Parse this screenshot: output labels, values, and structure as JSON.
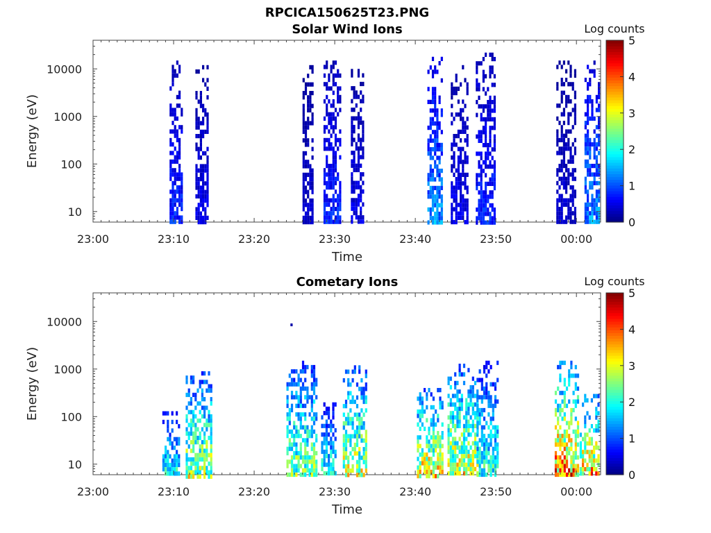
{
  "figure": {
    "title": "RPCICA150625T23.PNG"
  },
  "chart_data": [
    {
      "type": "heatmap",
      "title": "Solar Wind Ions",
      "xlabel": "Time",
      "ylabel": "Energy (eV)",
      "x_ticks": [
        "23:00",
        "23:10",
        "23:20",
        "23:30",
        "23:40",
        "23:50",
        "00:00"
      ],
      "x_range_minutes": [
        0,
        63
      ],
      "y_scale": "log",
      "y_ticks": [
        "10",
        "100",
        "1000",
        "10000"
      ],
      "y_range": [
        6,
        40000
      ],
      "colorbar": {
        "label": "Log counts",
        "range": [
          0,
          5
        ],
        "ticks": [
          "0",
          "1",
          "2",
          "3",
          "4",
          "5"
        ]
      },
      "bursts": [
        {
          "t_start": 9.5,
          "t_end": 11.0,
          "e_min": 6,
          "e_max": 15000,
          "level": 0.6
        },
        {
          "t_start": 12.7,
          "t_end": 14.3,
          "e_min": 300,
          "e_max": 12000,
          "level": 0.4
        },
        {
          "t_start": 26.0,
          "t_end": 27.3,
          "e_min": 300,
          "e_max": 12000,
          "level": 0.3
        },
        {
          "t_start": 28.6,
          "t_end": 30.7,
          "e_min": 6,
          "e_max": 15000,
          "level": 0.6
        },
        {
          "t_start": 32.0,
          "t_end": 33.6,
          "e_min": 300,
          "e_max": 10000,
          "level": 0.4
        },
        {
          "t_start": 41.5,
          "t_end": 43.3,
          "e_min": 6,
          "e_max": 18000,
          "level": 1.0
        },
        {
          "t_start": 44.4,
          "t_end": 46.5,
          "e_min": 300,
          "e_max": 12000,
          "level": 0.4
        },
        {
          "t_start": 47.5,
          "t_end": 49.8,
          "e_min": 6,
          "e_max": 22000,
          "level": 0.6
        },
        {
          "t_start": 57.5,
          "t_end": 59.8,
          "e_min": 300,
          "e_max": 15000,
          "level": 0.3
        },
        {
          "t_start": 61.0,
          "t_end": 62.7,
          "e_min": 6,
          "e_max": 15000,
          "level": 1.0
        }
      ]
    },
    {
      "type": "heatmap",
      "title": "Cometary Ions",
      "xlabel": "Time",
      "ylabel": "Energy (eV)",
      "x_ticks": [
        "23:00",
        "23:10",
        "23:20",
        "23:30",
        "23:40",
        "23:50",
        "00:00"
      ],
      "x_range_minutes": [
        0,
        63
      ],
      "y_scale": "log",
      "y_ticks": [
        "10",
        "100",
        "1000",
        "10000"
      ],
      "y_range": [
        6,
        40000
      ],
      "colorbar": {
        "label": "Log counts",
        "range": [
          0,
          5
        ],
        "ticks": [
          "0",
          "1",
          "2",
          "3",
          "4",
          "5"
        ]
      },
      "bursts": [
        {
          "t_start": 8.6,
          "t_end": 10.8,
          "e_min": 6,
          "e_max": 130,
          "level": 1.5
        },
        {
          "t_start": 11.5,
          "t_end": 14.8,
          "e_min": 6,
          "e_max": 900,
          "level": 2.1
        },
        {
          "t_start": 24.0,
          "t_end": 27.6,
          "e_min": 6,
          "e_max": 1500,
          "level": 1.9
        },
        {
          "t_start": 28.3,
          "t_end": 30.2,
          "e_min": 6,
          "e_max": 200,
          "level": 1.5
        },
        {
          "t_start": 31.0,
          "t_end": 34.0,
          "e_min": 6,
          "e_max": 1200,
          "level": 2.2
        },
        {
          "t_start": 40.2,
          "t_end": 43.5,
          "e_min": 6,
          "e_max": 400,
          "level": 2.4
        },
        {
          "t_start": 44.0,
          "t_end": 47.6,
          "e_min": 6,
          "e_max": 1300,
          "level": 2.3
        },
        {
          "t_start": 47.6,
          "t_end": 50.2,
          "e_min": 6,
          "e_max": 1500,
          "level": 1.6
        },
        {
          "t_start": 57.3,
          "t_end": 60.1,
          "e_min": 6,
          "e_max": 1500,
          "level": 2.8
        },
        {
          "t_start": 60.4,
          "t_end": 62.7,
          "e_min": 6,
          "e_max": 300,
          "level": 2.6
        }
      ],
      "points": [
        {
          "t": 24.5,
          "e": 8500,
          "level": 0.2
        }
      ]
    }
  ]
}
